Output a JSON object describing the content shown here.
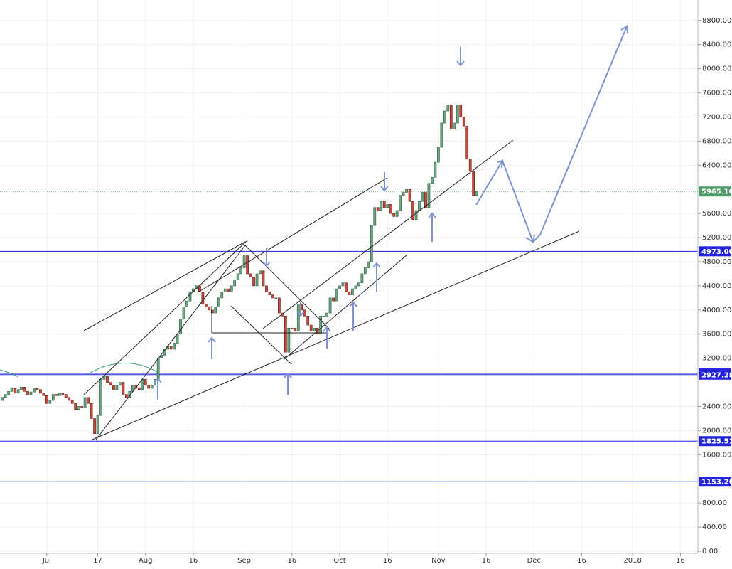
{
  "chart_data": {
    "type": "candlestick",
    "x": [
      -14,
      -13,
      -12,
      -11,
      -10,
      -9,
      -8,
      -7,
      -6,
      -5,
      -4,
      -3,
      -2,
      -1,
      0,
      1,
      2,
      3,
      4,
      5,
      6,
      7,
      8,
      9,
      10,
      11,
      12,
      13,
      14,
      15,
      16,
      17,
      18,
      19,
      20,
      21,
      22,
      23,
      24,
      25,
      26,
      27,
      28,
      29,
      30,
      31,
      32,
      33,
      34,
      35,
      36,
      37,
      38,
      39,
      40,
      41,
      42,
      43,
      44,
      45,
      46,
      47,
      48,
      49,
      50,
      51,
      52,
      53,
      54,
      55,
      56,
      57,
      58,
      59,
      60,
      61,
      62,
      63,
      64,
      65,
      66,
      67,
      68,
      69,
      70,
      71,
      72,
      73,
      74,
      75,
      76,
      77,
      78,
      79,
      80,
      81,
      82,
      83,
      84,
      85,
      86,
      87,
      88,
      89,
      90,
      91,
      92,
      93,
      94,
      95,
      96,
      97,
      98,
      99,
      100,
      101,
      102,
      103,
      104,
      105,
      106,
      107,
      108,
      109,
      110,
      111,
      112,
      113,
      114,
      115,
      116,
      117,
      118,
      119,
      120,
      121,
      122,
      123,
      124,
      125,
      126,
      127,
      128,
      129,
      130,
      131,
      132,
      133,
      134,
      135
    ],
    "open": [
      2500,
      2550,
      2600,
      2650,
      2700,
      2620,
      2680,
      2720,
      2650,
      2600,
      2640,
      2700,
      2680,
      2620,
      2580,
      2450,
      2500,
      2600,
      2580,
      2620,
      2600,
      2550,
      2500,
      2450,
      2350,
      2400,
      2380,
      2550,
      2450,
      2200,
      1950,
      2250,
      2850,
      2900,
      2800,
      2750,
      2680,
      2750,
      2800,
      2600,
      2550,
      2650,
      2750,
      2700,
      2680,
      2850,
      2750,
      2700,
      2750,
      2850,
      3200,
      3250,
      3350,
      3400,
      3350,
      3450,
      3600,
      3850,
      4050,
      4150,
      4300,
      4350,
      4400,
      4300,
      4100,
      4050,
      4000,
      3950,
      4050,
      4200,
      4300,
      4350,
      4300,
      4400,
      4500,
      4600,
      4700,
      4900,
      4600,
      4550,
      4400,
      4600,
      4650,
      4400,
      4300,
      4250,
      4200,
      4200,
      3950,
      3900,
      3300,
      3700,
      3700,
      3650,
      4100,
      4000,
      3900,
      3750,
      3650,
      3700,
      3600,
      3900,
      3900,
      3950,
      4200,
      4150,
      4350,
      4400,
      4450,
      4300,
      4250,
      4350,
      4400,
      4450,
      4600,
      4700,
      4800,
      5400,
      5700,
      5650,
      5800,
      5700,
      5750,
      5600,
      5550,
      5650,
      5900,
      5950,
      6000,
      5800,
      5500,
      5650,
      5800,
      5950,
      5700,
      6100,
      6200,
      6450,
      6700,
      7100,
      7300,
      7400,
      7000,
      7100,
      7400,
      7200,
      7050,
      6500,
      6300,
      5900
    ],
    "close": [
      2550,
      2600,
      2650,
      2700,
      2620,
      2680,
      2720,
      2650,
      2600,
      2640,
      2700,
      2680,
      2620,
      2580,
      2450,
      2500,
      2600,
      2580,
      2620,
      2600,
      2550,
      2500,
      2450,
      2350,
      2400,
      2380,
      2550,
      2450,
      2200,
      1950,
      2250,
      2850,
      2900,
      2800,
      2750,
      2680,
      2750,
      2800,
      2600,
      2550,
      2650,
      2750,
      2700,
      2680,
      2850,
      2750,
      2700,
      2750,
      2850,
      3200,
      3250,
      3350,
      3400,
      3350,
      3450,
      3600,
      3850,
      4050,
      4150,
      4300,
      4350,
      4400,
      4300,
      4100,
      4050,
      4000,
      3950,
      4050,
      4200,
      4300,
      4350,
      4300,
      4400,
      4500,
      4600,
      4700,
      4900,
      4600,
      4550,
      4400,
      4600,
      4650,
      4400,
      4300,
      4250,
      4200,
      4200,
      3950,
      3900,
      3300,
      3700,
      3700,
      3650,
      4100,
      4000,
      3900,
      3750,
      3650,
      3700,
      3600,
      3900,
      3900,
      3950,
      4200,
      4150,
      4350,
      4400,
      4450,
      4300,
      4250,
      4350,
      4400,
      4450,
      4600,
      4700,
      4800,
      5400,
      5700,
      5650,
      5800,
      5700,
      5750,
      5600,
      5550,
      5650,
      5900,
      5950,
      6000,
      5800,
      5500,
      5650,
      5800,
      5950,
      5700,
      6100,
      6200,
      6450,
      6700,
      7100,
      7300,
      7400,
      7000,
      7100,
      7400,
      7200,
      7050,
      6500,
      6300,
      5900,
      5965
    ],
    "up_color": "#6aa884",
    "down_color": "#c9493a",
    "xlim": [
      -14.7,
      204.5
    ],
    "xticks": [
      {
        "value": 0,
        "label": "Jul"
      },
      {
        "value": 16,
        "label": "17"
      },
      {
        "value": 31,
        "label": "Aug"
      },
      {
        "value": 46,
        "label": "16"
      },
      {
        "value": 62,
        "label": "Sep"
      },
      {
        "value": 77,
        "label": "16"
      },
      {
        "value": 92,
        "label": "Oct"
      },
      {
        "value": 107,
        "label": "16"
      },
      {
        "value": 123,
        "label": "Nov"
      },
      {
        "value": 138,
        "label": "16"
      },
      {
        "value": 153,
        "label": "Dec"
      },
      {
        "value": 168,
        "label": "16"
      },
      {
        "value": 184,
        "label": "2018"
      },
      {
        "value": 199,
        "label": "16"
      }
    ],
    "ylim": [
      0,
      9140
    ],
    "yticks": [
      {
        "value": 0,
        "label": "0.00"
      },
      {
        "value": 400,
        "label": "400.00"
      },
      {
        "value": 800,
        "label": "800.00"
      },
      {
        "value": 1600,
        "label": "1600.00"
      },
      {
        "value": 2000,
        "label": "2000.00"
      },
      {
        "value": 2400,
        "label": "2400.00"
      },
      {
        "value": 3200,
        "label": "3200.00"
      },
      {
        "value": 3600,
        "label": "3600.00"
      },
      {
        "value": 4000,
        "label": "4000.00"
      },
      {
        "value": 4400,
        "label": "4400.00"
      },
      {
        "value": 4800,
        "label": "4800.00"
      },
      {
        "value": 5200,
        "label": "5200.00"
      },
      {
        "value": 5600,
        "label": "5600.00"
      },
      {
        "value": 6400,
        "label": "6400.00"
      },
      {
        "value": 6800,
        "label": "6800.00"
      },
      {
        "value": 7200,
        "label": "7200.00"
      },
      {
        "value": 7600,
        "label": "7600.00"
      },
      {
        "value": 8000,
        "label": "8000.00"
      },
      {
        "value": 8400,
        "label": "8400.00"
      },
      {
        "value": 8800,
        "label": "8800.00"
      }
    ],
    "grid": true,
    "levels": [
      {
        "value": 5965.1,
        "label": "5965.10",
        "color": "#4e9a6a"
      },
      {
        "value": 4973,
        "label": "4973.00",
        "color": "#2323e0"
      },
      {
        "value": 2947.95,
        "label": "2947.95",
        "color": "#2323e0"
      },
      {
        "value": 2927.28,
        "label": "2927.28",
        "color": "#2323e0"
      },
      {
        "value": 1825.51,
        "label": "1825.51",
        "color": "#2323e0"
      },
      {
        "value": 1153.26,
        "label": "1153.26",
        "color": "#2323e0"
      }
    ]
  }
}
